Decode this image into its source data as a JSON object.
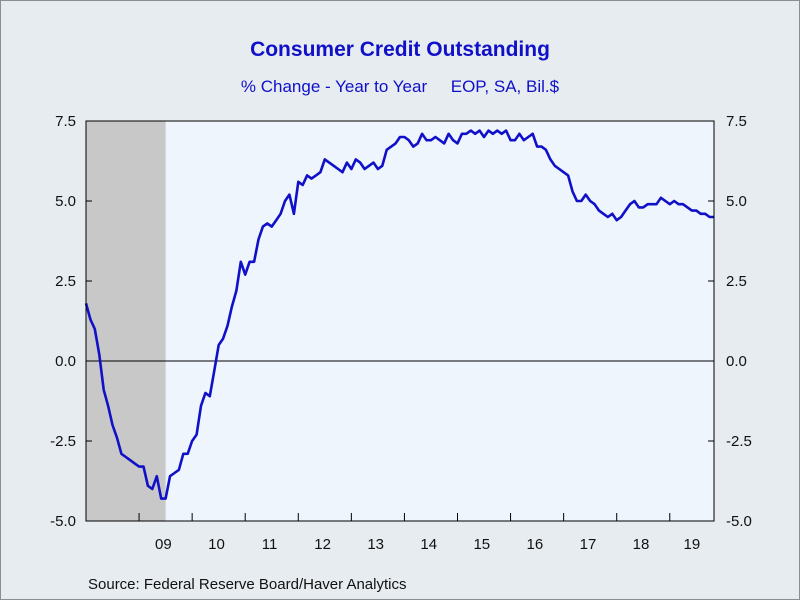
{
  "chart_data": {
    "type": "line",
    "title": "Consumer Credit Outstanding",
    "subtitle": "% Change - Year to Year     EOP, SA, Bil.$",
    "source": "Source:  Federal Reserve Board/Haver Analytics",
    "ylim": [
      -5.0,
      7.5
    ],
    "yticks_left": [
      "7.5",
      "5.0",
      "2.5",
      "0.0",
      "-2.5",
      "-5.0"
    ],
    "yticks_right": [
      "7.5",
      "5.0",
      "2.5",
      "0.0",
      "-2.5",
      "-5.0"
    ],
    "ytick_values": [
      7.5,
      5.0,
      2.5,
      0.0,
      -2.5,
      -5.0
    ],
    "xticks": [
      "09",
      "10",
      "11",
      "12",
      "13",
      "14",
      "15",
      "16",
      "17",
      "18",
      "19"
    ],
    "xlim": [
      "2008-01",
      "2019-11"
    ],
    "zero_line": true,
    "colors": {
      "line": "#1010c8",
      "plot_bg": "#eef5fd",
      "recession": "#c8c8c8",
      "title": "#1010c8"
    },
    "recession": [
      "2008-01",
      "2009-06"
    ],
    "series": [
      {
        "values": [
          [
            "2008-01",
            1.8
          ],
          [
            "2008-02",
            1.3
          ],
          [
            "2008-03",
            1.0
          ],
          [
            "2008-04",
            0.2
          ],
          [
            "2008-05",
            -0.9
          ],
          [
            "2008-06",
            -1.4
          ],
          [
            "2008-07",
            -2.0
          ],
          [
            "2008-08",
            -2.4
          ],
          [
            "2008-09",
            -2.9
          ],
          [
            "2008-10",
            -3.0
          ],
          [
            "2008-11",
            -3.1
          ],
          [
            "2008-12",
            -3.2
          ],
          [
            "2009-01",
            -3.3
          ],
          [
            "2009-02",
            -3.3
          ],
          [
            "2009-03",
            -3.9
          ],
          [
            "2009-04",
            -4.0
          ],
          [
            "2009-05",
            -3.6
          ],
          [
            "2009-06",
            -4.3
          ],
          [
            "2009-07",
            -4.3
          ],
          [
            "2009-08",
            -3.6
          ],
          [
            "2009-09",
            -3.5
          ],
          [
            "2009-10",
            -3.4
          ],
          [
            "2009-11",
            -2.9
          ],
          [
            "2009-12",
            -2.9
          ],
          [
            "2010-01",
            -2.5
          ],
          [
            "2010-02",
            -2.3
          ],
          [
            "2010-03",
            -1.4
          ],
          [
            "2010-04",
            -1.0
          ],
          [
            "2010-05",
            -1.1
          ],
          [
            "2010-06",
            -0.3
          ],
          [
            "2010-07",
            0.5
          ],
          [
            "2010-08",
            0.7
          ],
          [
            "2010-09",
            1.1
          ],
          [
            "2010-10",
            1.7
          ],
          [
            "2010-11",
            2.2
          ],
          [
            "2010-12",
            3.1
          ],
          [
            "2011-01",
            2.7
          ],
          [
            "2011-02",
            3.1
          ],
          [
            "2011-03",
            3.1
          ],
          [
            "2011-04",
            3.8
          ],
          [
            "2011-05",
            4.2
          ],
          [
            "2011-06",
            4.3
          ],
          [
            "2011-07",
            4.2
          ],
          [
            "2011-08",
            4.4
          ],
          [
            "2011-09",
            4.6
          ],
          [
            "2011-10",
            5.0
          ],
          [
            "2011-11",
            5.2
          ],
          [
            "2011-12",
            4.6
          ],
          [
            "2012-01",
            5.6
          ],
          [
            "2012-02",
            5.5
          ],
          [
            "2012-03",
            5.8
          ],
          [
            "2012-04",
            5.7
          ],
          [
            "2012-05",
            5.8
          ],
          [
            "2012-06",
            5.9
          ],
          [
            "2012-07",
            6.3
          ],
          [
            "2012-08",
            6.2
          ],
          [
            "2012-09",
            6.1
          ],
          [
            "2012-10",
            6.0
          ],
          [
            "2012-11",
            5.9
          ],
          [
            "2012-12",
            6.2
          ],
          [
            "2013-01",
            6.0
          ],
          [
            "2013-02",
            6.3
          ],
          [
            "2013-03",
            6.2
          ],
          [
            "2013-04",
            6.0
          ],
          [
            "2013-05",
            6.1
          ],
          [
            "2013-06",
            6.2
          ],
          [
            "2013-07",
            6.0
          ],
          [
            "2013-08",
            6.1
          ],
          [
            "2013-09",
            6.6
          ],
          [
            "2013-10",
            6.7
          ],
          [
            "2013-11",
            6.8
          ],
          [
            "2013-12",
            7.0
          ],
          [
            "2014-01",
            7.0
          ],
          [
            "2014-02",
            6.9
          ],
          [
            "2014-03",
            6.7
          ],
          [
            "2014-04",
            6.8
          ],
          [
            "2014-05",
            7.1
          ],
          [
            "2014-06",
            6.9
          ],
          [
            "2014-07",
            6.9
          ],
          [
            "2014-08",
            7.0
          ],
          [
            "2014-09",
            6.9
          ],
          [
            "2014-10",
            6.8
          ],
          [
            "2014-11",
            7.1
          ],
          [
            "2014-12",
            6.9
          ],
          [
            "2015-01",
            6.8
          ],
          [
            "2015-02",
            7.1
          ],
          [
            "2015-03",
            7.1
          ],
          [
            "2015-04",
            7.2
          ],
          [
            "2015-05",
            7.1
          ],
          [
            "2015-06",
            7.2
          ],
          [
            "2015-07",
            7.0
          ],
          [
            "2015-08",
            7.2
          ],
          [
            "2015-09",
            7.1
          ],
          [
            "2015-10",
            7.2
          ],
          [
            "2015-11",
            7.1
          ],
          [
            "2015-12",
            7.2
          ],
          [
            "2016-01",
            6.9
          ],
          [
            "2016-02",
            6.9
          ],
          [
            "2016-03",
            7.1
          ],
          [
            "2016-04",
            6.9
          ],
          [
            "2016-05",
            7.0
          ],
          [
            "2016-06",
            7.1
          ],
          [
            "2016-07",
            6.7
          ],
          [
            "2016-08",
            6.7
          ],
          [
            "2016-09",
            6.6
          ],
          [
            "2016-10",
            6.3
          ],
          [
            "2016-11",
            6.1
          ],
          [
            "2016-12",
            6.0
          ],
          [
            "2017-01",
            5.9
          ],
          [
            "2017-02",
            5.8
          ],
          [
            "2017-03",
            5.3
          ],
          [
            "2017-04",
            5.0
          ],
          [
            "2017-05",
            5.0
          ],
          [
            "2017-06",
            5.2
          ],
          [
            "2017-07",
            5.0
          ],
          [
            "2017-08",
            4.9
          ],
          [
            "2017-09",
            4.7
          ],
          [
            "2017-10",
            4.6
          ],
          [
            "2017-11",
            4.5
          ],
          [
            "2017-12",
            4.6
          ],
          [
            "2018-01",
            4.4
          ],
          [
            "2018-02",
            4.5
          ],
          [
            "2018-03",
            4.7
          ],
          [
            "2018-04",
            4.9
          ],
          [
            "2018-05",
            5.0
          ],
          [
            "2018-06",
            4.8
          ],
          [
            "2018-07",
            4.8
          ],
          [
            "2018-08",
            4.9
          ],
          [
            "2018-09",
            4.9
          ],
          [
            "2018-10",
            4.9
          ],
          [
            "2018-11",
            5.1
          ],
          [
            "2018-12",
            5.0
          ],
          [
            "2019-01",
            4.9
          ],
          [
            "2019-02",
            5.0
          ],
          [
            "2019-03",
            4.9
          ],
          [
            "2019-04",
            4.9
          ],
          [
            "2019-05",
            4.8
          ],
          [
            "2019-06",
            4.7
          ],
          [
            "2019-07",
            4.7
          ],
          [
            "2019-08",
            4.6
          ],
          [
            "2019-09",
            4.6
          ],
          [
            "2019-10",
            4.5
          ],
          [
            "2019-11",
            4.5
          ]
        ]
      }
    ]
  }
}
